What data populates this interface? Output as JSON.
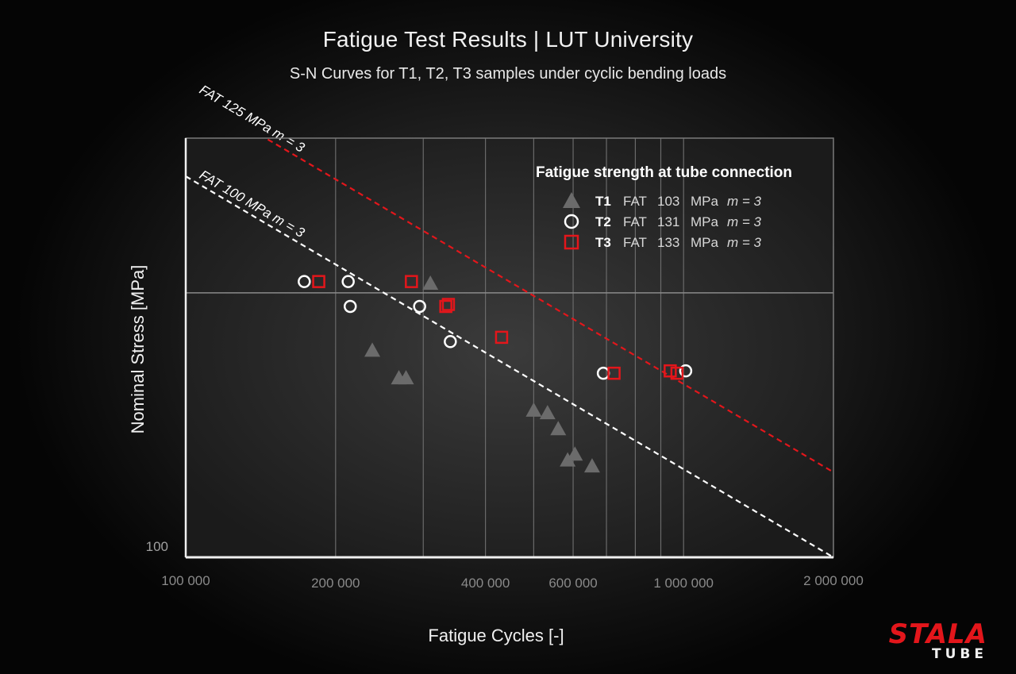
{
  "header": {
    "title": "Fatigue Test Results | LUT University",
    "subtitle": "S-N Curves for T1, T2, T3 samples under cyclic bending loads"
  },
  "logo": {
    "brand": "STALA",
    "sub": "TUBE",
    "brand_color": "#e3161b"
  },
  "chart_data": {
    "type": "scatter",
    "title": "Fatigue Test Results | LUT University",
    "subtitle": "S-N Curves for T1, T2, T3 samples under cyclic bending loads",
    "xlabel": "Fatigue Cycles [-]",
    "ylabel": "Nominal Stress [MPa]",
    "xscale": "log",
    "yscale": "log",
    "xlim": [
      100000,
      2000000
    ],
    "ylim": [
      100,
      300
    ],
    "grid": true,
    "x_ticks": [
      {
        "value": 100000,
        "label": "100 000"
      },
      {
        "value": 200000,
        "label": "200 000"
      },
      {
        "value": 400000,
        "label": "400 000"
      },
      {
        "value": 600000,
        "label": "600 000"
      },
      {
        "value": 1000000,
        "label": "1 000  000"
      },
      {
        "value": 2000000,
        "label": "2 000  000"
      }
    ],
    "y_ticks": [
      {
        "value": 100,
        "label": "100"
      }
    ],
    "x_grid": [
      200000,
      300000,
      400000,
      500000,
      600000,
      700000,
      800000,
      900000,
      1000000
    ],
    "y_grid": [
      200
    ],
    "legend": {
      "title": "Fatigue strength at tube connection",
      "placement": "top-right",
      "entries": [
        {
          "id": "T1",
          "label": "T1",
          "fat_prefix": "FAT",
          "fat": "103",
          "unit": "MPa",
          "m_label": "m = 3",
          "marker": "triangle",
          "color": "#6b6b6b"
        },
        {
          "id": "T2",
          "label": "T2",
          "fat_prefix": "FAT",
          "fat": "131",
          "unit": "MPa",
          "m_label": "m = 3",
          "marker": "circle",
          "color": "#ffffff"
        },
        {
          "id": "T3",
          "label": "T3",
          "fat_prefix": "FAT",
          "fat": "133",
          "unit": "MPa",
          "m_label": "m = 3",
          "marker": "square",
          "color": "#e3161b"
        }
      ]
    },
    "lines": [
      {
        "name": "FAT 125",
        "label": "FAT  125  MPa  m = 3",
        "fat": 125,
        "m": 3,
        "color": "#e3161b",
        "dash": true
      },
      {
        "name": "FAT 100",
        "label": "FAT  100  MPa  m = 3",
        "fat": 100,
        "m": 3,
        "color": "#ffffff",
        "dash": true
      }
    ],
    "series": [
      {
        "name": "T1",
        "marker": "triangle",
        "color": "#6b6b6b",
        "points": [
          {
            "x": 310000,
            "y": 205
          },
          {
            "x": 237000,
            "y": 172
          },
          {
            "x": 268000,
            "y": 160
          },
          {
            "x": 277000,
            "y": 160
          },
          {
            "x": 500000,
            "y": 147
          },
          {
            "x": 533000,
            "y": 146
          },
          {
            "x": 560000,
            "y": 140
          },
          {
            "x": 585000,
            "y": 129
          },
          {
            "x": 605000,
            "y": 131
          },
          {
            "x": 655000,
            "y": 127
          }
        ]
      },
      {
        "name": "T2",
        "marker": "circle",
        "color": "#ffffff",
        "points": [
          {
            "x": 173000,
            "y": 206
          },
          {
            "x": 212000,
            "y": 206
          },
          {
            "x": 214000,
            "y": 193
          },
          {
            "x": 295000,
            "y": 193
          },
          {
            "x": 340000,
            "y": 176
          },
          {
            "x": 690000,
            "y": 162
          },
          {
            "x": 1010000,
            "y": 163
          }
        ]
      },
      {
        "name": "T3",
        "marker": "square",
        "color": "#e3161b",
        "points": [
          {
            "x": 185000,
            "y": 206
          },
          {
            "x": 284000,
            "y": 206
          },
          {
            "x": 333000,
            "y": 193
          },
          {
            "x": 337000,
            "y": 194
          },
          {
            "x": 431000,
            "y": 178
          },
          {
            "x": 725000,
            "y": 162
          },
          {
            "x": 940000,
            "y": 163
          },
          {
            "x": 970000,
            "y": 162
          }
        ]
      }
    ]
  }
}
